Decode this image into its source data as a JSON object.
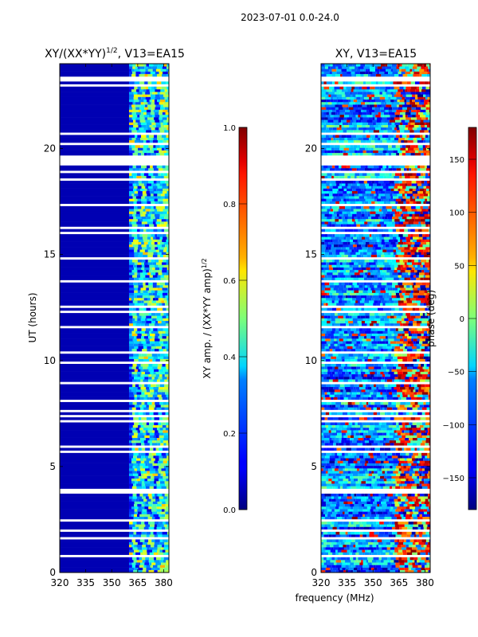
{
  "suptitle": "2023-07-01 0.0-24.0",
  "colors": {
    "background": "#ffffff",
    "missing_data": "#ffffff",
    "colormap": "jet"
  },
  "chart_data": [
    {
      "type": "heatmap",
      "title": "XY/(XX*YY)",
      "title_sup": "1/2",
      "title_tail": ", V13=EA15",
      "xlabel": "",
      "ylabel": "UT (hours)",
      "xlim": [
        320,
        383
      ],
      "ylim": [
        0,
        24
      ],
      "xticks": [
        320,
        335,
        350,
        365,
        380
      ],
      "yticks": [
        0,
        5,
        10,
        15,
        20
      ],
      "colorbar": {
        "label": "XY amp. / (XX*YY amp)",
        "label_sup": "1/2",
        "range": [
          0.0,
          1.0
        ],
        "ticks": [
          "0.0",
          "0.2",
          "0.4",
          "0.6",
          "0.8",
          "1.0"
        ]
      },
      "description_values": {
        "background_level": 0.05,
        "band_start_mhz": 360,
        "band_columns_mhz": [
          362,
          367,
          372,
          377,
          381
        ],
        "band_level_range": [
          0.25,
          0.6
        ]
      }
    },
    {
      "type": "heatmap",
      "title": "XY, V13=EA15",
      "xlabel": "frequency (MHz)",
      "ylabel": "",
      "xlim": [
        320,
        383
      ],
      "ylim": [
        0,
        24
      ],
      "xticks": [
        320,
        335,
        350,
        365,
        380
      ],
      "yticks": [
        0,
        5,
        10,
        15,
        20
      ],
      "colorbar": {
        "label": "phase (deg)",
        "range": [
          -180,
          180
        ],
        "ticks": [
          "−150",
          "−100",
          "−50",
          "0",
          "50",
          "100",
          "150"
        ]
      },
      "description_values": {
        "phase_range_deg": [
          -180,
          180
        ],
        "coherent_region_mhz": [
          320,
          362
        ],
        "noisy_region_mhz": [
          362,
          383
        ]
      }
    }
  ]
}
